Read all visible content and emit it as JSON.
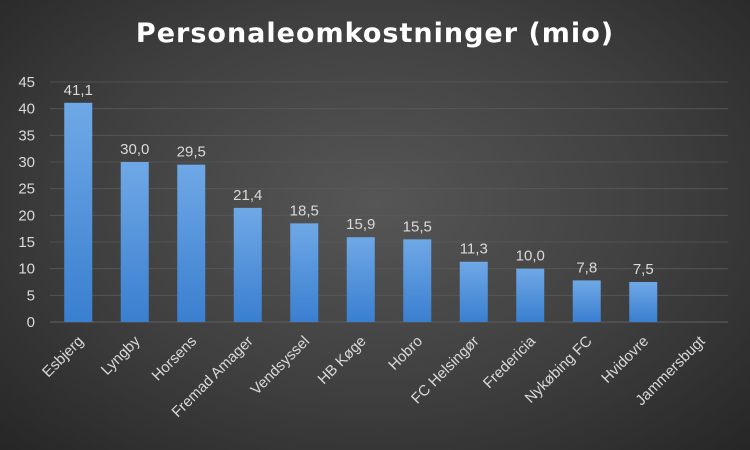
{
  "chart_data": {
    "type": "bar",
    "title": "Personaleomkostninger (mio)",
    "xlabel": "",
    "ylabel": "",
    "ylim": [
      0,
      45
    ],
    "yticks": [
      0,
      5,
      10,
      15,
      20,
      25,
      30,
      35,
      40,
      45
    ],
    "grid": true,
    "legend": "none",
    "categories": [
      "Esbjerg",
      "Lyngby",
      "Horsens",
      "Fremad Amager",
      "Vendsyssel",
      "HB Køge",
      "Hobro",
      "FC Helsingør",
      "Fredericia",
      "Nykøbing FC",
      "Hvidovre",
      "Jammersbugt"
    ],
    "values": [
      41.1,
      30.0,
      29.5,
      21.4,
      18.5,
      15.9,
      15.5,
      11.3,
      10.0,
      7.8,
      7.5,
      null
    ],
    "data_labels": [
      "41,1",
      "30,0",
      "29,5",
      "21,4",
      "18,5",
      "15,9",
      "15,5",
      "11,3",
      "10,0",
      "7,8",
      "7,5",
      ""
    ],
    "colors": {
      "bar_top": "#6fa8e6",
      "bar_bottom": "#3a7fd0",
      "background": "#3f3f3f",
      "text": "#d9d9d9",
      "title": "#ffffff",
      "grid": "#595959"
    }
  }
}
